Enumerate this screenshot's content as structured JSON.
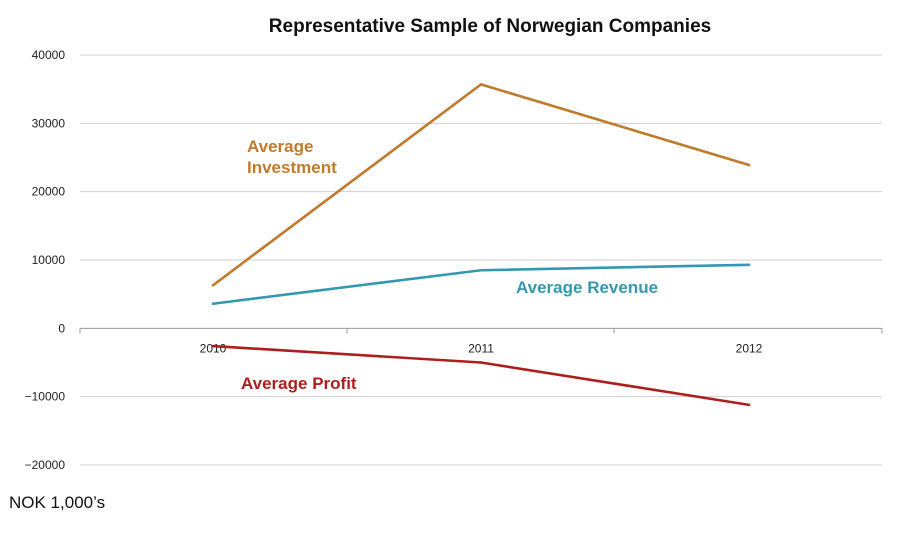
{
  "chart_data": {
    "type": "line",
    "title": "Representative Sample of Norwegian Companies",
    "unit_note": "NOK 1,000’s",
    "categories": [
      "2010",
      "2011",
      "2012"
    ],
    "ylim": [
      -20000,
      40000
    ],
    "yticks": [
      40000,
      30000,
      20000,
      10000,
      0,
      -10000,
      -20000
    ],
    "ytick_labels": [
      "40000",
      "30000",
      "20000",
      "10000",
      "0",
      "−10000",
      "−20000"
    ],
    "grid": true,
    "series": [
      {
        "name": "Average Investment",
        "label_lines": [
          "Average",
          "Investment"
        ],
        "color": "#c07a2c",
        "values": [
          6300,
          35700,
          23900
        ]
      },
      {
        "name": "Average Revenue",
        "label_lines": [
          "Average Revenue"
        ],
        "color": "#3499b0",
        "values": [
          3600,
          8500,
          9300
        ]
      },
      {
        "name": "Average Profit",
        "label_lines": [
          "Average Profit"
        ],
        "color": "#ad1f1f",
        "values": [
          -2600,
          -5000,
          -11200
        ]
      }
    ]
  }
}
